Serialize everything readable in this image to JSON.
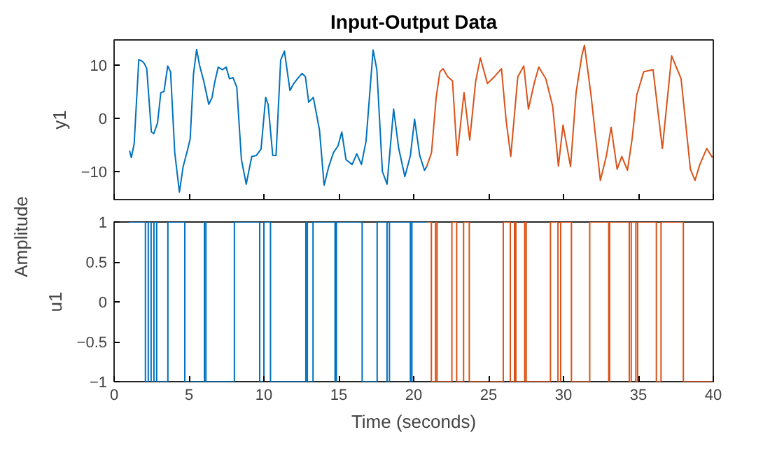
{
  "chart_data": [
    {
      "type": "line",
      "title": "Input-Output Data",
      "ylabel": "y1",
      "annotations": [
        "Amplitude"
      ],
      "xlim": [
        0,
        40
      ],
      "xticks": [
        0,
        5,
        10,
        15,
        20,
        25,
        30,
        35,
        40
      ],
      "ylim": [
        -15.3,
        14.7
      ],
      "yticks": [
        -10,
        0,
        10
      ],
      "tick_labels": "y",
      "grid": false,
      "line_style": "solid",
      "marker": "none",
      "series": [
        {
          "color": "#0072bd",
          "x": [
            1.03,
            1.15,
            1.34,
            1.65,
            1.87,
            2.03,
            2.18,
            2.49,
            2.65,
            2.9,
            3.12,
            3.33,
            3.58,
            3.77,
            4.05,
            4.36,
            4.61,
            4.89,
            5.08,
            5.3,
            5.51,
            5.7,
            5.98,
            6.32,
            6.54,
            6.7,
            6.95,
            7.23,
            7.48,
            7.7,
            7.94,
            8.19,
            8.5,
            8.82,
            9.19,
            9.5,
            9.81,
            10.12,
            10.28,
            10.59,
            10.81,
            11.12,
            11.37,
            11.74,
            11.99,
            12.3,
            12.55,
            12.77,
            12.99,
            13.3,
            13.71,
            14.02,
            14.33,
            14.64,
            14.95,
            15.2,
            15.48,
            15.89,
            16.2,
            16.51,
            16.82,
            17.29,
            17.54,
            17.91,
            18.22,
            18.66,
            19.0,
            19.41,
            19.78,
            20.06,
            20.4,
            20.72,
            20.87
          ],
          "values": [
            -6.1,
            -7.4,
            -4.8,
            11.0,
            10.7,
            10.2,
            9.3,
            -2.6,
            -2.9,
            -0.9,
            4.8,
            5.0,
            9.8,
            8.7,
            -6.5,
            -13.9,
            -9.1,
            -6.1,
            -3.9,
            8.3,
            12.9,
            10.0,
            7.0,
            2.6,
            3.9,
            6.5,
            9.6,
            9.1,
            9.6,
            7.4,
            7.6,
            5.8,
            -7.8,
            -12.4,
            -7.2,
            -7.0,
            -5.8,
            3.9,
            2.6,
            -7.0,
            -7.0,
            10.9,
            12.6,
            5.2,
            6.5,
            7.6,
            8.4,
            7.8,
            3.0,
            3.9,
            -2.2,
            -12.6,
            -9.1,
            -6.5,
            -5.2,
            -2.6,
            -7.8,
            -8.7,
            -6.7,
            -8.7,
            -4.3,
            12.8,
            9.1,
            -10.0,
            -12.4,
            1.7,
            -5.7,
            -11.0,
            -7.0,
            -0.2,
            -7.0,
            -9.8,
            -9.1
          ]
        },
        {
          "color": "#d95319",
          "x": [
            20.87,
            21.19,
            21.5,
            21.75,
            21.96,
            22.27,
            22.59,
            22.9,
            23.36,
            23.74,
            24.14,
            24.45,
            24.92,
            25.39,
            25.86,
            26.17,
            26.48,
            26.95,
            27.35,
            27.66,
            28.04,
            28.35,
            28.82,
            29.28,
            29.66,
            29.97,
            30.47,
            30.84,
            31.22,
            31.4,
            31.84,
            32.46,
            32.87,
            33.18,
            33.58,
            33.89,
            34.27,
            34.58,
            34.89,
            35.35,
            35.98,
            36.6,
            37.22,
            37.85,
            38.47,
            38.78,
            39.1,
            39.56,
            39.94
          ],
          "values": [
            -9.1,
            -6.5,
            3.9,
            8.7,
            9.3,
            7.8,
            7.0,
            -7.0,
            4.8,
            -4.1,
            7.0,
            11.3,
            6.5,
            7.8,
            9.3,
            -0.4,
            -7.2,
            7.8,
            9.8,
            1.7,
            6.5,
            9.6,
            7.4,
            2.2,
            -9.0,
            -1.3,
            -9.1,
            4.8,
            11.7,
            13.7,
            4.3,
            -11.7,
            -7.0,
            -1.7,
            -9.6,
            -7.2,
            -9.8,
            -3.9,
            4.3,
            8.7,
            9.1,
            -5.7,
            11.7,
            7.4,
            -9.6,
            -11.7,
            -8.7,
            -5.7,
            -7.4
          ]
        }
      ]
    },
    {
      "type": "step",
      "ylabel": "u1",
      "xlabel": "Time (seconds)",
      "xlim": [
        0,
        40
      ],
      "xticks": [
        0,
        5,
        10,
        15,
        20,
        25,
        30,
        35,
        40
      ],
      "ylim": [
        -1,
        1
      ],
      "yticks": [
        -1,
        -0.5,
        0,
        0.5,
        1
      ],
      "grid": false,
      "line_style": "solid",
      "marker": "none",
      "series": [
        {
          "color": "#0072bd",
          "x": [
            1.0,
            2.09,
            2.28,
            2.47,
            2.66,
            2.84,
            3.59,
            4.72,
            6.03,
            6.13,
            8.03,
            9.72,
            10.0,
            10.44,
            12.8,
            12.9,
            13.28,
            14.75,
            14.84,
            16.56,
            17.56,
            18.22,
            18.38,
            19.78,
            19.88,
            20.87
          ],
          "values": [
            1,
            -1,
            1,
            -1,
            1,
            -1,
            1,
            -1,
            1,
            -1,
            1,
            -1,
            1,
            -1,
            1,
            -1,
            1,
            -1,
            1,
            -1,
            1,
            -1,
            1,
            -1,
            1,
            1
          ]
        },
        {
          "color": "#d95319",
          "x": [
            20.87,
            21.18,
            21.46,
            21.56,
            22.55,
            22.87,
            23.33,
            23.71,
            25.98,
            26.45,
            26.73,
            26.82,
            27.41,
            27.51,
            29.13,
            29.63,
            29.81,
            30.53,
            31.75,
            33.02,
            33.08,
            34.39,
            34.52,
            34.83,
            34.95,
            36.2,
            36.51,
            38.0,
            40.0
          ],
          "values": [
            1,
            -1,
            1,
            -1,
            1,
            -1,
            1,
            -1,
            1,
            -1,
            1,
            -1,
            1,
            -1,
            1,
            -1,
            1,
            -1,
            1,
            -1,
            1,
            -1,
            1,
            -1,
            1,
            -1,
            1,
            -1,
            -1
          ]
        }
      ]
    }
  ]
}
